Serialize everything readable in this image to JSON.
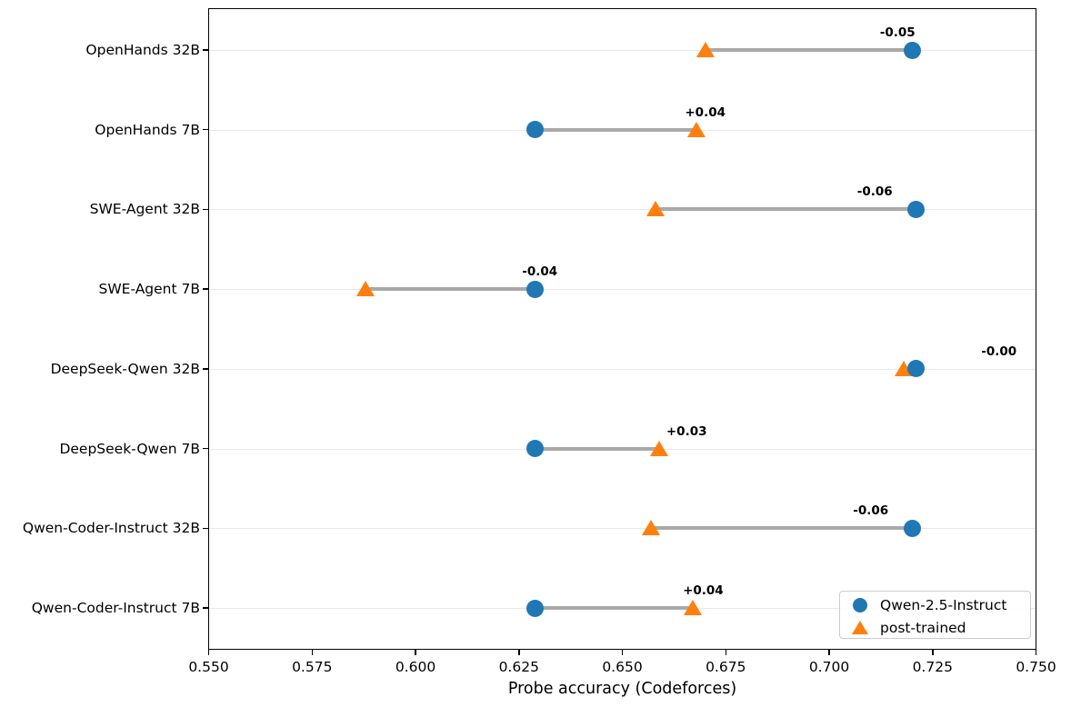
{
  "chart_data": {
    "type": "scatter",
    "subtype": "dumbbell",
    "title": "",
    "xlabel": "Probe accuracy (Codeforces)",
    "ylabel": "",
    "xlim": [
      0.55,
      0.75
    ],
    "xticks": [
      0.55,
      0.575,
      0.6,
      0.625,
      0.65,
      0.675,
      0.7,
      0.725,
      0.75
    ],
    "xtick_decimals": 3,
    "grid": "horizontal",
    "legend_position": "lower right",
    "categories": [
      "OpenHands 32B",
      "OpenHands 7B",
      "SWE-Agent 32B",
      "SWE-Agent 7B",
      "DeepSeek-Qwen 32B",
      "DeepSeek-Qwen 7B",
      "Qwen-Coder-Instruct 32B",
      "Qwen-Coder-Instruct 7B"
    ],
    "series": [
      {
        "name": "Qwen-2.5-Instruct",
        "marker": "circle",
        "color": "#1f77b4",
        "values": [
          0.72,
          0.629,
          0.721,
          0.629,
          0.721,
          0.629,
          0.72,
          0.629
        ]
      },
      {
        "name": "post-trained",
        "marker": "triangle",
        "color": "#ff7f0e",
        "values": [
          0.67,
          0.668,
          0.658,
          0.588,
          0.718,
          0.659,
          0.657,
          0.667
        ]
      }
    ],
    "annotations": [
      "-0.05",
      "+0.04",
      "-0.06",
      "-0.04",
      "-0.00",
      "+0.03",
      "-0.06",
      "+0.04"
    ],
    "colors": {
      "connector": "#a9a9a9",
      "gridline": "#e8e8e8",
      "spine": "#000000",
      "annotation_text": "#000000"
    }
  }
}
